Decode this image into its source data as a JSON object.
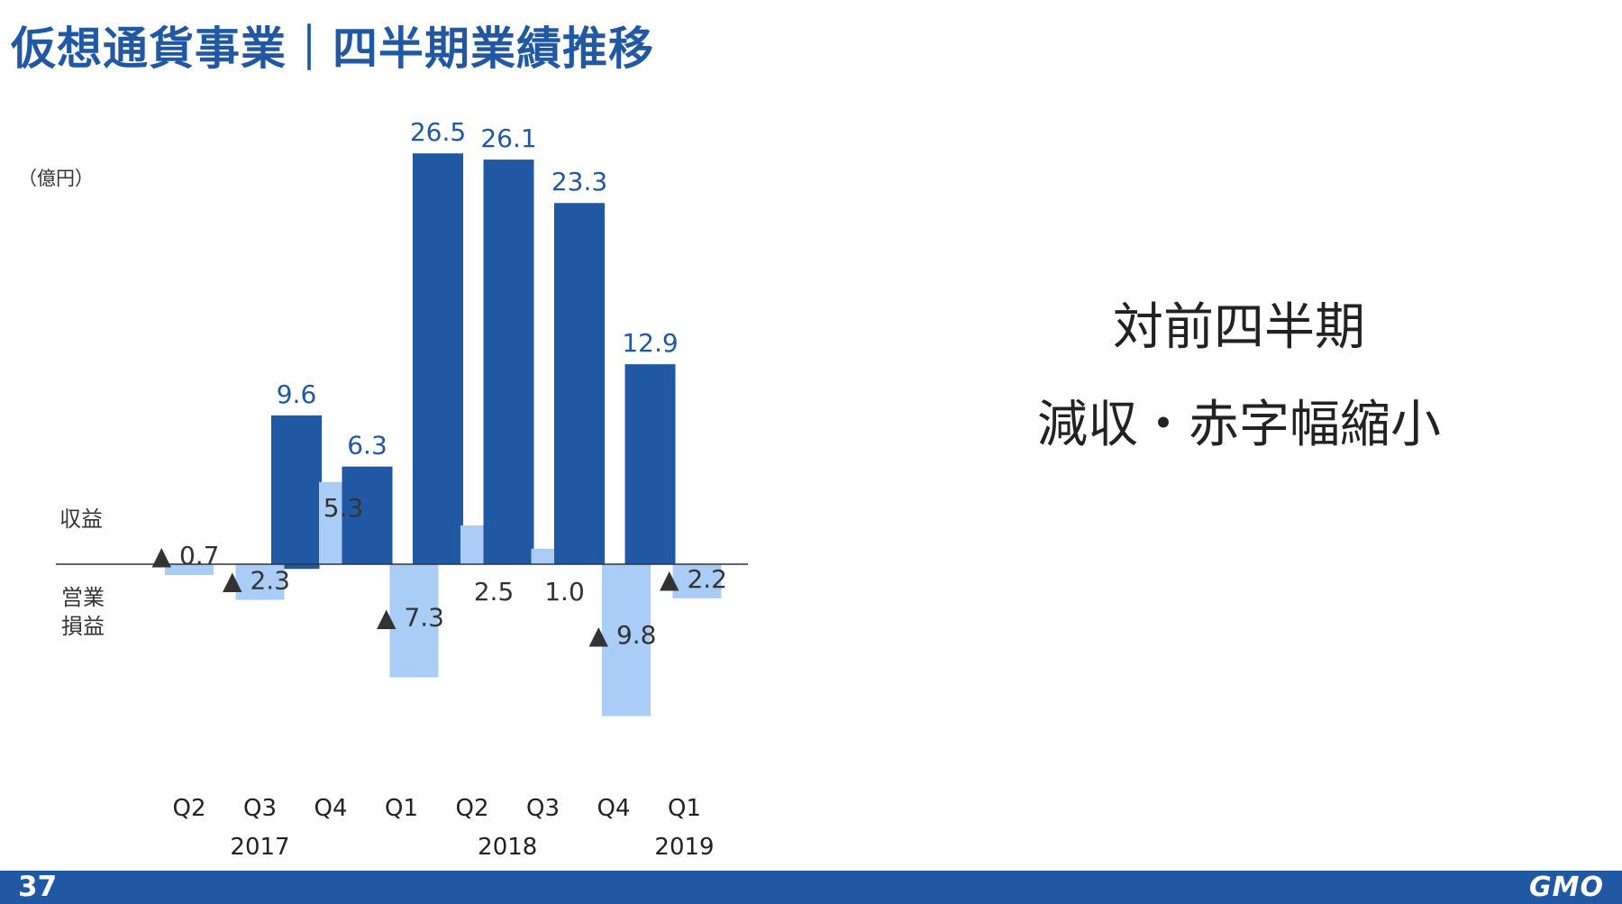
{
  "page": {
    "title": "仮想通貨事業｜四半期業績推移",
    "number": "37",
    "logo": "GMO"
  },
  "takeaway": {
    "line1": "対前四半期",
    "line2": "減収・赤字幅縮小"
  },
  "chart_data": {
    "type": "bar",
    "unit_label": "（億円）",
    "row_label_revenue": "収益",
    "row_label_operating_line1": "営業",
    "row_label_operating_line2": "損益",
    "categories": [
      "Q2",
      "Q3",
      "Q4",
      "Q1",
      "Q2",
      "Q3",
      "Q4",
      "Q1"
    ],
    "year_labels": [
      {
        "label": "2017",
        "span": [
          0,
          2
        ]
      },
      {
        "label": "2018",
        "span": [
          3,
          6
        ]
      },
      {
        "label": "2019",
        "span": [
          7,
          7
        ]
      }
    ],
    "series": [
      {
        "name": "収益",
        "color": "#2158a3",
        "values": [
          0,
          -0.3,
          9.6,
          6.3,
          26.5,
          26.1,
          23.3,
          12.9
        ],
        "labels": [
          "",
          "",
          "9.6",
          "6.3",
          "26.5",
          "26.1",
          "23.3",
          "12.9"
        ]
      },
      {
        "name": "営業損益",
        "color": "#a9cdf6",
        "values": [
          -0.7,
          -2.3,
          5.3,
          -7.3,
          2.5,
          1.0,
          -9.8,
          -2.2
        ],
        "labels": [
          "▲ 0.7",
          "▲ 2.3",
          "5.3",
          "▲ 7.3",
          "2.5",
          "1.0",
          "▲ 9.8",
          "▲ 2.2"
        ]
      }
    ],
    "label_colors": {
      "revenue": "#2158a3",
      "operating": "#333333"
    },
    "ylim": [
      -10.5,
      27.0
    ],
    "grid": false,
    "legend": "none"
  }
}
